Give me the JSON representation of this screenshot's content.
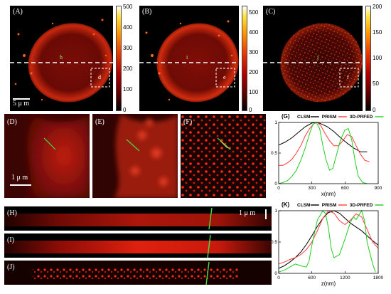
{
  "panels": {
    "A": {
      "label": "(A)",
      "line_tag": "h",
      "box_tag": "d",
      "scalebar": "5 μ m",
      "colorbar_ticks": [
        "500",
        "400",
        "300",
        "200",
        "100",
        "0"
      ]
    },
    "B": {
      "label": "(B)",
      "line_tag": "i",
      "box_tag": "e",
      "colorbar_ticks": [
        "500",
        "400",
        "300",
        "200",
        "100",
        "0"
      ]
    },
    "C": {
      "label": "(C)",
      "line_tag": "j",
      "box_tag": "f",
      "colorbar_ticks": [
        "200",
        "150",
        "100",
        "50",
        "0"
      ]
    },
    "D": {
      "label": "(D)",
      "scalebar": "1 μ m"
    },
    "E": {
      "label": "(E)"
    },
    "F": {
      "label": "(F)"
    },
    "H": {
      "label": "(H)",
      "scalebar": "1 μ m"
    },
    "I": {
      "label": "(I)"
    },
    "J": {
      "label": "(J)"
    }
  },
  "colors": {
    "clsm": "#000000",
    "prism": "#ff3b3b",
    "prfed": "#22cc22",
    "accent_line": "#44dd44"
  },
  "chart_data": [
    {
      "type": "line",
      "panel_label": "(G)",
      "legend": [
        "CLSM",
        "PRISM",
        "3D-PRFED"
      ],
      "xlabel": "x(nm)",
      "ylabel": "",
      "xlim": [
        0,
        900
      ],
      "ylim": [
        0,
        1
      ],
      "xticks": [
        0,
        300,
        600,
        900
      ],
      "yticks": [
        0,
        0.5,
        1
      ],
      "series": [
        {
          "name": "CLSM",
          "x": [
            0,
            60,
            120,
            180,
            240,
            300,
            340,
            380,
            440,
            500,
            560,
            620,
            680,
            740,
            800
          ],
          "y": [
            0.63,
            0.68,
            0.75,
            0.84,
            0.93,
            0.99,
            1.0,
            0.98,
            0.93,
            0.85,
            0.75,
            0.66,
            0.58,
            0.52,
            0.52
          ]
        },
        {
          "name": "PRISM",
          "x": [
            0,
            40,
            80,
            120,
            160,
            200,
            240,
            280,
            320,
            350,
            380,
            420,
            460,
            500,
            540,
            580,
            620,
            660,
            700,
            740,
            780,
            820
          ],
          "y": [
            0.3,
            0.3,
            0.34,
            0.4,
            0.5,
            0.62,
            0.78,
            0.9,
            0.98,
            1.0,
            0.95,
            0.82,
            0.7,
            0.62,
            0.62,
            0.7,
            0.8,
            0.77,
            0.62,
            0.48,
            0.38,
            0.36
          ]
        },
        {
          "name": "3D-PRFED",
          "x": [
            0,
            40,
            80,
            120,
            160,
            200,
            240,
            280,
            310,
            340,
            370,
            400,
            430,
            460,
            490,
            520,
            560,
            600,
            630,
            660,
            690,
            720,
            760,
            800
          ],
          "y": [
            0.0,
            0.02,
            0.05,
            0.12,
            0.22,
            0.38,
            0.58,
            0.82,
            0.97,
            1.0,
            0.9,
            0.62,
            0.38,
            0.22,
            0.25,
            0.45,
            0.72,
            0.88,
            0.9,
            0.72,
            0.38,
            0.12,
            0.02,
            0.0
          ]
        }
      ]
    },
    {
      "type": "line",
      "panel_label": "(K)",
      "legend": [
        "CLSM",
        "PRISM",
        "3D-PRFED"
      ],
      "xlabel": "z(nm)",
      "ylabel": "",
      "xlim": [
        0,
        1800
      ],
      "ylim": [
        0,
        1
      ],
      "xticks": [
        0,
        600,
        1200,
        1800
      ],
      "yticks": [
        0,
        0.5,
        1
      ],
      "series": [
        {
          "name": "CLSM",
          "x": [
            0,
            100,
            200,
            300,
            400,
            500,
            600,
            700,
            800,
            900,
            1000,
            1100,
            1200,
            1300,
            1400,
            1500,
            1600,
            1700,
            1800
          ],
          "y": [
            0.08,
            0.12,
            0.18,
            0.25,
            0.34,
            0.46,
            0.6,
            0.75,
            0.88,
            0.97,
            1.0,
            0.96,
            0.88,
            0.8,
            0.74,
            0.68,
            0.6,
            0.52,
            0.45
          ]
        },
        {
          "name": "PRISM",
          "x": [
            0,
            100,
            200,
            300,
            400,
            500,
            600,
            700,
            800,
            900,
            1000,
            1100,
            1200,
            1300,
            1400,
            1500,
            1600,
            1700,
            1800
          ],
          "y": [
            0.15,
            0.18,
            0.22,
            0.25,
            0.3,
            0.38,
            0.5,
            0.68,
            0.88,
            1.0,
            0.96,
            0.84,
            0.78,
            0.85,
            0.95,
            0.9,
            0.7,
            0.5,
            0.4
          ]
        },
        {
          "name": "3D-PRFED",
          "x": [
            0,
            100,
            200,
            300,
            400,
            500,
            550,
            600,
            700,
            800,
            850,
            900,
            950,
            1000,
            1100,
            1200,
            1300,
            1350,
            1400,
            1500,
            1550,
            1600,
            1700,
            1750
          ],
          "y": [
            0.02,
            0.05,
            0.1,
            0.15,
            0.12,
            0.1,
            0.2,
            0.45,
            0.85,
            1.0,
            0.95,
            0.72,
            0.4,
            0.25,
            0.3,
            0.55,
            0.82,
            0.9,
            0.86,
            1.0,
            0.85,
            0.5,
            0.15,
            0.02
          ]
        }
      ]
    }
  ]
}
